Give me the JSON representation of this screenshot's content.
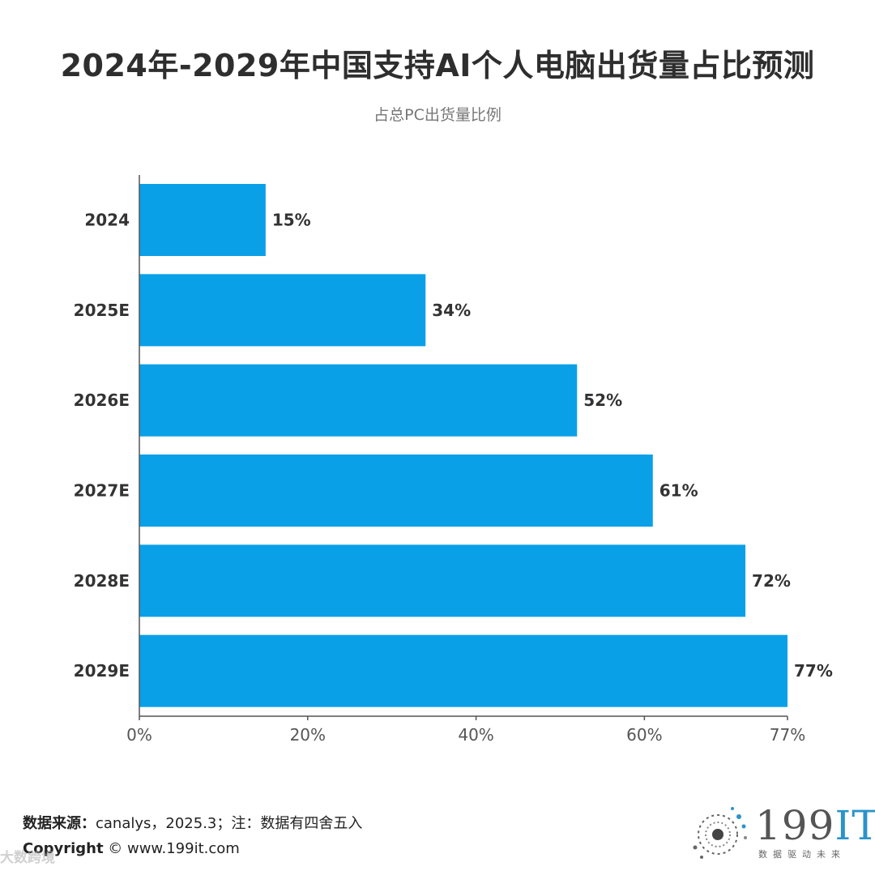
{
  "title": "2024年-2029年中国支持AI个人电脑出货量占比预测",
  "subtitle": "占总PC出货量比例",
  "footer": {
    "source_label": "数据来源：",
    "source_text": "canalys，2025.3；注：数据有四舍五入",
    "copyright_label": "Copyright",
    "copyright_text": " ©  www.199it.com",
    "watermark": "大数跨境"
  },
  "logo": {
    "number": "199",
    "suffix": "IT",
    "tagline": "数据驱动未来"
  },
  "colors": {
    "bar": "#0aa0e8",
    "axis": "#555555",
    "value_text": "#333333",
    "tick_text": "#555555"
  },
  "chart_data": {
    "type": "bar",
    "orientation": "horizontal",
    "categories": [
      "2024",
      "2025E",
      "2026E",
      "2027E",
      "2028E",
      "2029E"
    ],
    "values": [
      15,
      34,
      52,
      61,
      72,
      77
    ],
    "value_labels": [
      "15%",
      "34%",
      "52%",
      "61%",
      "72%",
      "77%"
    ],
    "xlim": [
      0,
      77
    ],
    "x_ticks": [
      0,
      20,
      40,
      60,
      77
    ],
    "x_tick_labels": [
      "0%",
      "20%",
      "40%",
      "60%",
      "77%"
    ],
    "grid": false,
    "legend": "none"
  }
}
